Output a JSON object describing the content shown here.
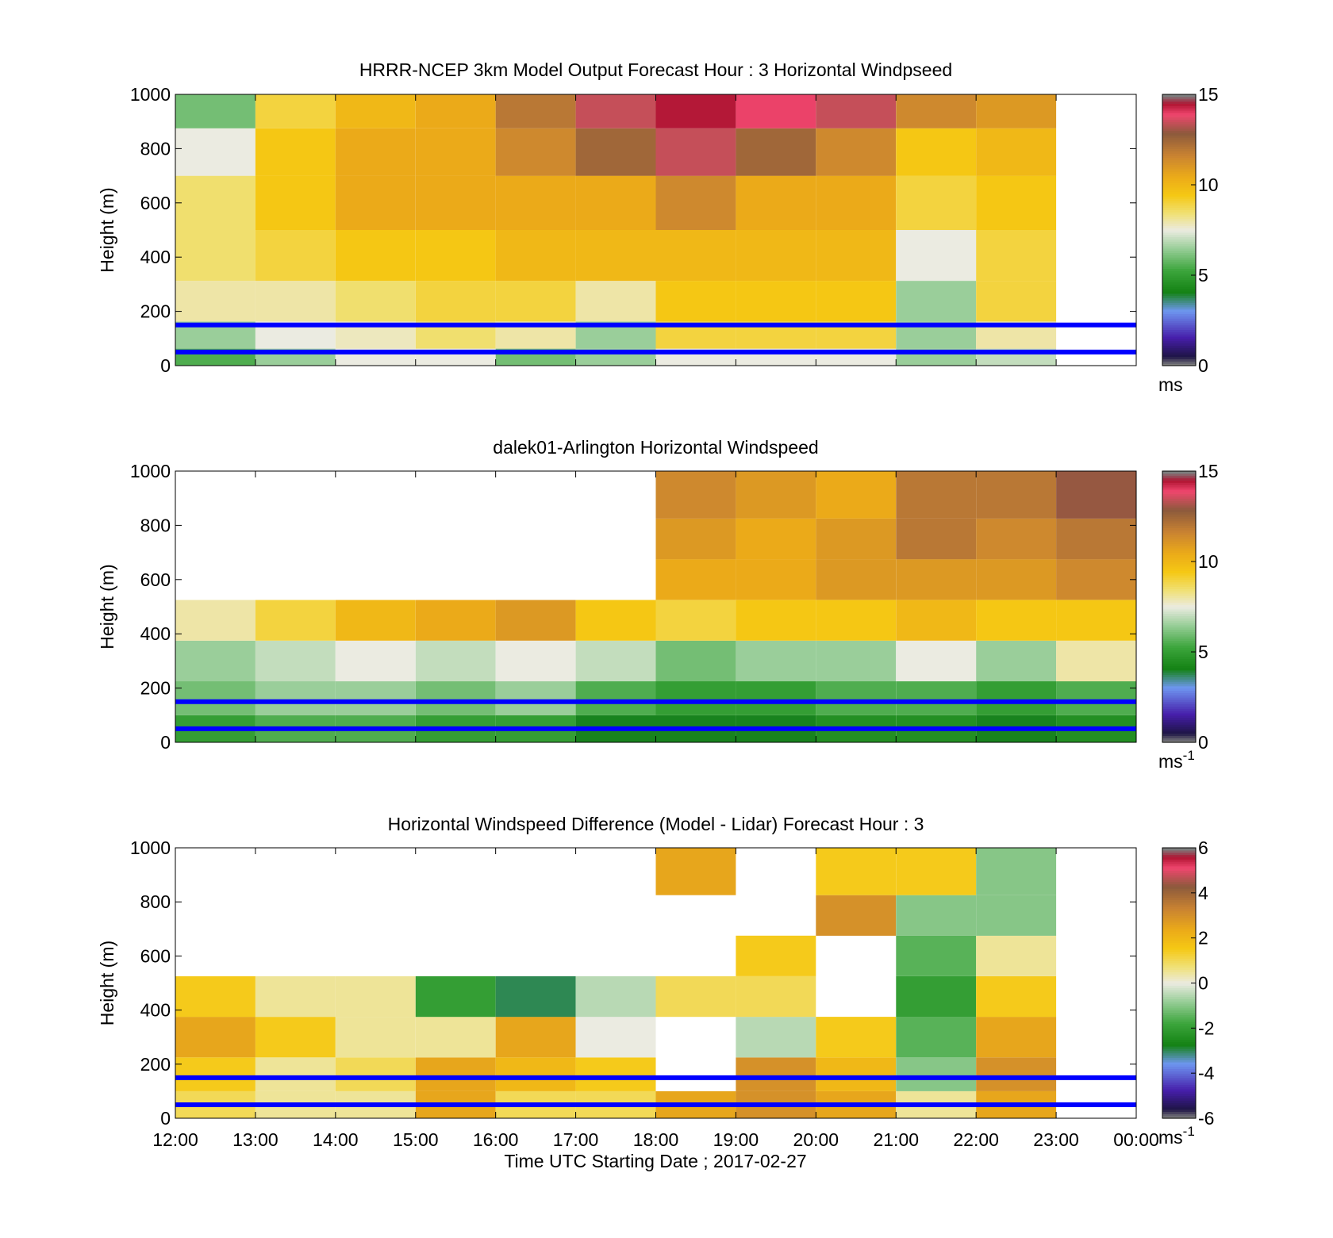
{
  "figure": {
    "xlabel": "Time UTC  Starting Date ; 2017-02-27",
    "x_ticks": [
      "12:00",
      "13:00",
      "14:00",
      "15:00",
      "16:00",
      "17:00",
      "18:00",
      "19:00",
      "20:00",
      "21:00",
      "22:00",
      "23:00",
      "00:00"
    ]
  },
  "chart_data": [
    {
      "type": "heatmap",
      "title": "HRRR-NCEP 3km Model Output   Forecast Hour : 3 Horizontal Windpseed",
      "ylabel": "Height (m)",
      "ylim": [
        0,
        1000
      ],
      "y_ticks": [
        "0",
        "200",
        "400",
        "600",
        "800",
        "1000"
      ],
      "colorbar": {
        "ticks": [
          "0",
          "5",
          "10",
          "15"
        ],
        "min": 0,
        "max": 15,
        "unit": "ms",
        "unit_sup": ""
      },
      "reference_lines_m": [
        50,
        150
      ],
      "x_times": [
        "12:00",
        "13:00",
        "14:00",
        "15:00",
        "16:00",
        "17:00",
        "18:00",
        "19:00",
        "20:00",
        "21:00",
        "22:00"
      ],
      "y_levels_m": [
        25,
        100,
        225,
        400,
        600,
        800,
        950
      ],
      "values_ms": [
        [
          5.5,
          6.5,
          7.5,
          7.5,
          6.0,
          6.5,
          7.5,
          7.5,
          7.5,
          6.5,
          7.0
        ],
        [
          6.5,
          7.5,
          7.8,
          8.5,
          8.0,
          6.5,
          9.0,
          9.0,
          9.0,
          6.5,
          8.0
        ],
        [
          8.0,
          8.0,
          8.5,
          9.0,
          9.0,
          8.0,
          9.5,
          9.5,
          9.5,
          6.5,
          9.0
        ],
        [
          8.5,
          9.0,
          9.5,
          9.5,
          10.0,
          10.0,
          10.0,
          10.0,
          10.0,
          7.5,
          9.0
        ],
        [
          8.5,
          9.5,
          10.5,
          10.5,
          10.5,
          10.5,
          11.5,
          10.5,
          10.5,
          9.0,
          9.5
        ],
        [
          7.5,
          9.5,
          10.5,
          10.5,
          11.5,
          12.5,
          13.5,
          12.5,
          11.5,
          9.5,
          10.0
        ],
        [
          6.0,
          9.0,
          10.0,
          10.5,
          12.0,
          13.5,
          14.5,
          14.0,
          13.5,
          11.5,
          11.0
        ]
      ]
    },
    {
      "type": "heatmap",
      "title": "dalek01-Arlington  Horizontal Windspeed",
      "ylabel": "Height (m)",
      "ylim": [
        0,
        1000
      ],
      "y_ticks": [
        "0",
        "200",
        "400",
        "600",
        "800",
        "1000"
      ],
      "colorbar": {
        "ticks": [
          "0",
          "5",
          "10",
          "15"
        ],
        "min": 0,
        "max": 15,
        "unit": "ms",
        "unit_sup": "-1"
      },
      "reference_lines_m": [
        50,
        150
      ],
      "x_times": [
        "12:00",
        "13:00",
        "14:00",
        "15:00",
        "16:00",
        "17:00",
        "18:00",
        "19:00",
        "20:00",
        "21:00",
        "22:00",
        "23:00"
      ],
      "y_levels_m": [
        50,
        150,
        300,
        450,
        600,
        750,
        900
      ],
      "values_ms": [
        [
          5.0,
          5.5,
          5.5,
          5.0,
          5.0,
          4.0,
          4.0,
          4.0,
          4.5,
          4.5,
          4.0,
          4.5
        ],
        [
          6.0,
          6.5,
          6.5,
          6.0,
          6.5,
          5.5,
          5.0,
          5.0,
          5.5,
          5.5,
          5.0,
          5.5
        ],
        [
          6.5,
          7.0,
          7.5,
          7.0,
          7.5,
          7.0,
          6.0,
          6.5,
          6.5,
          7.5,
          6.5,
          8.0
        ],
        [
          8.0,
          9.0,
          10.0,
          10.5,
          11.0,
          9.5,
          9.0,
          9.5,
          9.5,
          10.0,
          9.5,
          9.5
        ],
        [
          null,
          null,
          null,
          null,
          null,
          null,
          10.5,
          10.5,
          11.0,
          11.0,
          11.0,
          11.5
        ],
        [
          null,
          null,
          null,
          null,
          null,
          null,
          11.0,
          10.5,
          11.0,
          12.0,
          11.5,
          12.0
        ],
        [
          null,
          null,
          null,
          null,
          null,
          null,
          11.5,
          11.0,
          10.5,
          12.0,
          12.0,
          13.0
        ]
      ]
    },
    {
      "type": "heatmap",
      "title": "Horizontal Windspeed Difference (Model - Lidar) Forecast Hour : 3",
      "ylabel": "Height (m)",
      "ylim": [
        0,
        1000
      ],
      "y_ticks": [
        "0",
        "200",
        "400",
        "600",
        "800",
        "1000"
      ],
      "colorbar": {
        "ticks": [
          "-6",
          "-4",
          "-2",
          "0",
          "2",
          "4",
          "6"
        ],
        "min": -6,
        "max": 6,
        "unit": "ms",
        "unit_sup": "-1"
      },
      "reference_lines_m": [
        50,
        150
      ],
      "x_times": [
        "12:00",
        "13:00",
        "14:00",
        "15:00",
        "16:00",
        "17:00",
        "18:00",
        "19:00",
        "20:00",
        "21:00",
        "22:00"
      ],
      "y_levels_m": [
        50,
        150,
        300,
        450,
        600,
        750,
        900
      ],
      "values_ms": [
        [
          1.0,
          0.5,
          0.5,
          2.5,
          1.0,
          1.0,
          2.5,
          3.0,
          2.5,
          0.5,
          2.5
        ],
        [
          1.5,
          0.5,
          1.0,
          2.5,
          2.0,
          1.5,
          null,
          3.0,
          2.0,
          -1.0,
          3.0
        ],
        [
          2.5,
          1.5,
          0.5,
          0.5,
          2.5,
          0.0,
          null,
          -0.5,
          1.5,
          -1.5,
          2.5
        ],
        [
          1.5,
          0.5,
          0.5,
          -2.0,
          -3.0,
          -0.5,
          1.0,
          1.0,
          null,
          -2.0,
          1.5
        ],
        [
          null,
          null,
          null,
          null,
          null,
          null,
          null,
          1.5,
          null,
          -1.5,
          0.5
        ],
        [
          null,
          null,
          null,
          null,
          null,
          null,
          null,
          null,
          3.0,
          -1.0,
          -1.0
        ],
        [
          null,
          null,
          null,
          null,
          null,
          null,
          2.5,
          null,
          1.5,
          1.5,
          -1.0
        ]
      ]
    }
  ]
}
